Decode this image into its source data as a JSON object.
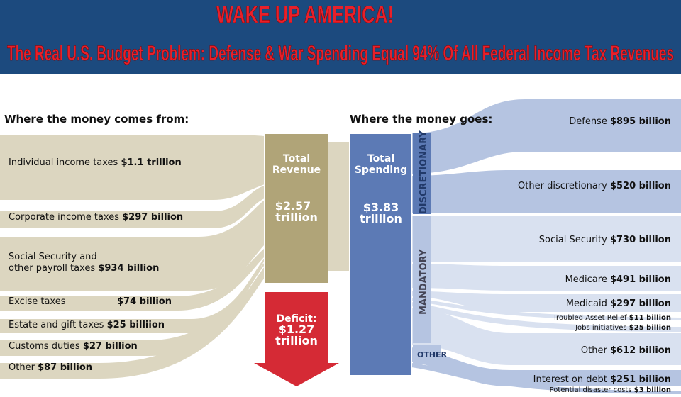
{
  "header": {
    "title": "WAKE UP AMERICA!",
    "subtitle": "The Real U.S. Budget Problem: Defense & War Spending Equal 94% Of All Federal Income Tax Revenues"
  },
  "sources": {
    "heading": "Where the money comes from:",
    "items": [
      {
        "label": "Individual income taxes",
        "amount": "$1.1 trillion"
      },
      {
        "label": "Corporate income taxes",
        "amount": "$297 billion"
      },
      {
        "label": "Social Security and",
        "label2": "other payroll taxes",
        "amount": "$934 billion"
      },
      {
        "label": "Excise taxes",
        "amount": "$74 billion"
      },
      {
        "label": "Estate and gift taxes",
        "amount": "$25 billiion"
      },
      {
        "label": "Customs duties",
        "amount": "$27 billion"
      },
      {
        "label": "Other",
        "amount": "$87 billion"
      }
    ]
  },
  "revenue": {
    "label": "Total",
    "label2": "Revenue",
    "amount": "$2.57",
    "unit": "trillion"
  },
  "deficit": {
    "label": "Deficit:",
    "amount": "$1.27",
    "unit": "trillion"
  },
  "spending": {
    "label": "Total",
    "label2": "Spending",
    "amount": "$3.83",
    "unit": "trillion"
  },
  "destinations": {
    "heading": "Where the money goes:",
    "groups": [
      "DISCRETIONARY",
      "MANDATORY",
      "OTHER"
    ],
    "items": [
      {
        "label": "Defense",
        "amount": "$895 billion"
      },
      {
        "label": "Other discretionary",
        "amount": "$520 billion"
      },
      {
        "label": "Social Security",
        "amount": "$730 billion"
      },
      {
        "label": "Medicare",
        "amount": "$491 billion"
      },
      {
        "label": "Medicaid",
        "amount": "$297 billion"
      },
      {
        "label": "Troubled Asset Relief",
        "amount": "$11 billion"
      },
      {
        "label": "Jobs initiatives",
        "amount": "$25 billion"
      },
      {
        "label": "Other",
        "amount": "$612 billion"
      },
      {
        "label": "Interest on debt",
        "amount": "$251 billion"
      },
      {
        "label": "Potential disaster costs",
        "amount": "$3 billion"
      }
    ]
  }
}
